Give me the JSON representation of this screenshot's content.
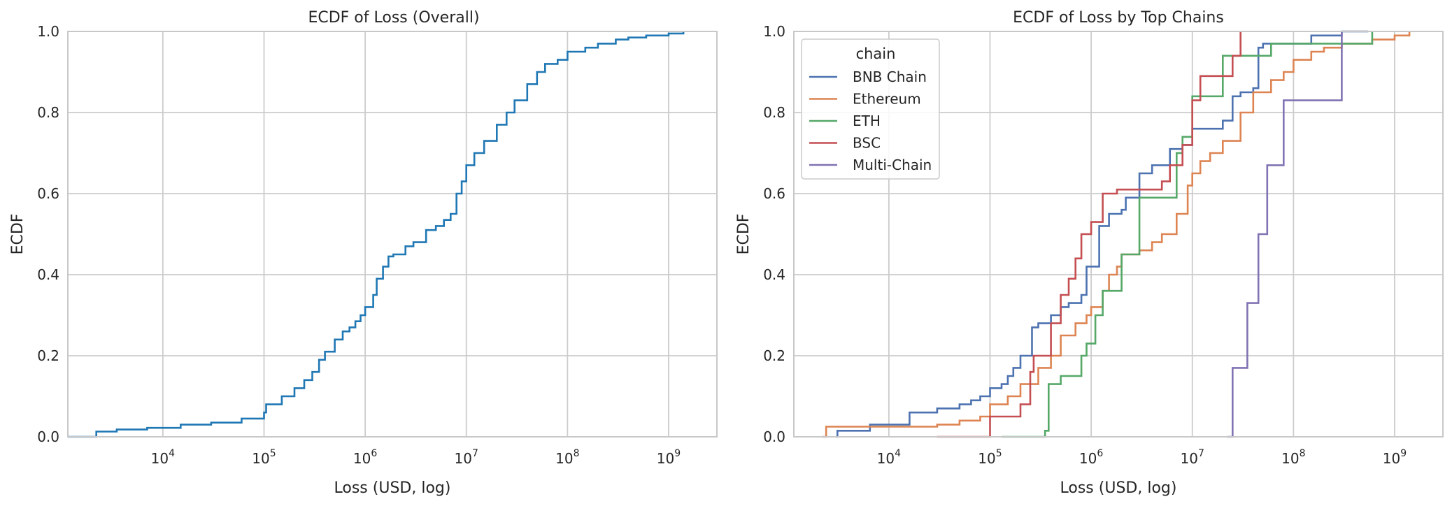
{
  "chart_data": [
    {
      "type": "line",
      "title": "ECDF of Loss (Overall)",
      "xlabel": "Loss (USD, log)",
      "ylabel": "ECDF",
      "xscale": "log",
      "xlim": [
        1150,
        3000000000
      ],
      "ylim": [
        0,
        1.0
      ],
      "grid": true,
      "xticks": [
        "10^4",
        "10^5",
        "10^6",
        "10^7",
        "10^8",
        "10^9"
      ],
      "yticks": [
        "0.0",
        "0.2",
        "0.4",
        "0.6",
        "0.8",
        "1.0"
      ],
      "series": [
        {
          "color": "#1f77b4",
          "x": [
            1150,
            2200,
            3500,
            7000,
            15000,
            30000,
            60000,
            100000,
            105000,
            150000,
            200000,
            250000,
            300000,
            350000,
            400000,
            500000,
            600000,
            700000,
            800000,
            900000,
            1000000,
            1200000,
            1300000,
            1500000,
            1700000,
            1900000,
            2000000,
            2500000,
            3000000,
            4000000,
            5000000,
            6000000,
            7000000,
            8000000,
            9000000,
            10000000,
            12000000,
            15000000,
            20000000,
            25000000,
            30000000,
            40000000,
            50000000,
            60000000,
            80000000,
            100000000,
            150000000,
            200000000,
            300000000,
            400000000,
            600000000,
            1000000000,
            1400000000
          ],
          "y": [
            0.0,
            0.013,
            0.018,
            0.022,
            0.03,
            0.035,
            0.045,
            0.06,
            0.08,
            0.1,
            0.12,
            0.14,
            0.16,
            0.19,
            0.21,
            0.24,
            0.26,
            0.27,
            0.285,
            0.3,
            0.32,
            0.35,
            0.39,
            0.42,
            0.445,
            0.45,
            0.45,
            0.47,
            0.48,
            0.51,
            0.52,
            0.535,
            0.55,
            0.6,
            0.63,
            0.67,
            0.7,
            0.73,
            0.77,
            0.8,
            0.83,
            0.87,
            0.9,
            0.92,
            0.93,
            0.95,
            0.96,
            0.97,
            0.98,
            0.985,
            0.99,
            0.995,
            1.0
          ]
        }
      ]
    },
    {
      "type": "line",
      "title": "ECDF of Loss by Top Chains",
      "xlabel": "Loss (USD, log)",
      "ylabel": "ECDF",
      "xscale": "log",
      "xlim": [
        1150,
        3000000000
      ],
      "ylim": [
        0,
        1.0
      ],
      "grid": true,
      "legend": {
        "title": "chain",
        "placement": "upper left"
      },
      "xticks": [
        "10^4",
        "10^5",
        "10^6",
        "10^7",
        "10^8",
        "10^9"
      ],
      "yticks": [
        "0.0",
        "0.2",
        "0.4",
        "0.6",
        "0.8",
        "1.0"
      ],
      "series": [
        {
          "name": "BNB Chain",
          "color": "#4c72b0",
          "x": [
            3000,
            3100,
            6500,
            16000,
            30000,
            50000,
            65000,
            80000,
            100000,
            130000,
            150000,
            170000,
            200000,
            260000,
            300000,
            400000,
            500000,
            600000,
            800000,
            900000,
            1200000,
            1500000,
            2000000,
            2200000,
            3000000,
            4000000,
            6000000,
            8000000,
            10000000,
            20000000,
            25000000,
            30000000,
            40000000,
            45000000,
            50000000,
            100000000,
            150000000,
            300000000,
            550000000
          ],
          "y": [
            0.0,
            0.015,
            0.03,
            0.06,
            0.07,
            0.08,
            0.09,
            0.1,
            0.12,
            0.13,
            0.15,
            0.17,
            0.2,
            0.27,
            0.28,
            0.3,
            0.32,
            0.33,
            0.35,
            0.42,
            0.52,
            0.55,
            0.56,
            0.59,
            0.65,
            0.67,
            0.71,
            0.72,
            0.76,
            0.78,
            0.84,
            0.85,
            0.86,
            0.96,
            0.97,
            0.97,
            0.99,
            1.0,
            1.0
          ]
        },
        {
          "name": "Ethereum",
          "color": "#dd8452",
          "x": [
            2200,
            2400,
            30000,
            50000,
            80000,
            100000,
            150000,
            200000,
            300000,
            400000,
            500000,
            700000,
            900000,
            1000000,
            1300000,
            1500000,
            1800000,
            2000000,
            3000000,
            4000000,
            5000000,
            7000000,
            9000000,
            10000000,
            12000000,
            15000000,
            20000000,
            30000000,
            40000000,
            60000000,
            80000000,
            100000000,
            150000000,
            200000000,
            300000000,
            600000000,
            1000000000,
            1400000000
          ],
          "y": [
            0.0,
            0.025,
            0.03,
            0.04,
            0.05,
            0.08,
            0.1,
            0.13,
            0.17,
            0.2,
            0.25,
            0.28,
            0.3,
            0.32,
            0.36,
            0.4,
            0.42,
            0.45,
            0.46,
            0.48,
            0.5,
            0.55,
            0.62,
            0.65,
            0.68,
            0.7,
            0.73,
            0.8,
            0.85,
            0.88,
            0.9,
            0.93,
            0.95,
            0.96,
            0.97,
            0.98,
            0.99,
            1.0
          ]
        },
        {
          "name": "ETH",
          "color": "#55a868",
          "x": [
            130000,
            350000,
            380000,
            500000,
            800000,
            900000,
            1100000,
            1300000,
            2000000,
            3000000,
            7000000,
            8000000,
            10000000,
            20000000,
            60000000,
            600000000
          ],
          "y": [
            0.0,
            0.015,
            0.13,
            0.15,
            0.2,
            0.23,
            0.3,
            0.36,
            0.45,
            0.59,
            0.7,
            0.74,
            0.84,
            0.94,
            0.97,
            1.0
          ]
        },
        {
          "name": "BSC",
          "color": "#c44e52",
          "x": [
            30000,
            100000,
            200000,
            250000,
            270000,
            400000,
            500000,
            600000,
            700000,
            800000,
            1000000,
            1300000,
            1800000,
            3000000,
            5000000,
            6000000,
            8000000,
            10000000,
            12000000,
            25000000,
            30000000
          ],
          "y": [
            0.0,
            0.05,
            0.08,
            0.16,
            0.2,
            0.28,
            0.35,
            0.39,
            0.44,
            0.5,
            0.53,
            0.6,
            0.61,
            0.61,
            0.63,
            0.67,
            0.72,
            0.83,
            0.89,
            0.94,
            1.0
          ]
        },
        {
          "name": "Multi-Chain",
          "color": "#8172b3",
          "x": [
            22000000,
            25000000,
            35000000,
            45000000,
            55000000,
            80000000,
            150000000,
            300000000
          ],
          "y": [
            0.0,
            0.17,
            0.33,
            0.5,
            0.67,
            0.83,
            0.83,
            1.0
          ]
        }
      ]
    }
  ]
}
